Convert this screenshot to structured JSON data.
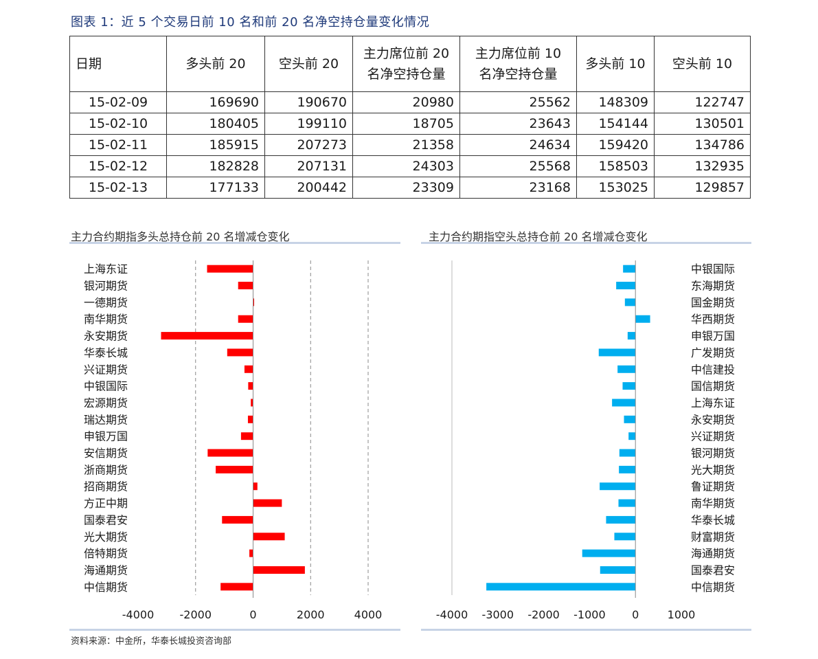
{
  "figure_title": "图表 1：近 5 个交易日前 10 名和前 20 名净空持仓量变化情况",
  "table": {
    "headers": [
      "日期",
      "多头前 20",
      "空头前 20",
      "主力席位前 20\n名净空持仓量",
      "主力席位前 10\n名净空持仓量",
      "多头前 10",
      "空头前 10"
    ],
    "rows": [
      [
        "15-02-09",
        "169690",
        "190670",
        "20980",
        "25562",
        "148309",
        "122747"
      ],
      [
        "15-02-10",
        "180405",
        "199110",
        "18705",
        "23643",
        "154144",
        "130501"
      ],
      [
        "15-02-11",
        "185915",
        "207273",
        "21358",
        "24634",
        "159420",
        "134786"
      ],
      [
        "15-02-12",
        "182828",
        "207131",
        "24303",
        "25568",
        "158503",
        "132935"
      ],
      [
        "15-02-13",
        "177133",
        "200442",
        "23309",
        "23168",
        "153025",
        "129857"
      ]
    ]
  },
  "chart_data": [
    {
      "type": "bar",
      "orientation": "horizontal",
      "title": "主力合约期指多头总持仓前 20 名增减仓变化",
      "color": "#ff0000",
      "categories": [
        "上海东证",
        "银河期货",
        "一德期货",
        "南华期货",
        "永安期货",
        "华泰长城",
        "兴证期货",
        "中银国际",
        "宏源期货",
        "瑞达期货",
        "申银万国",
        "安信期货",
        "浙商期货",
        "招商期货",
        "方正中期",
        "国泰君安",
        "光大期货",
        "倍特期货",
        "海通期货",
        "中信期货"
      ],
      "values": [
        -1600,
        -520,
        30,
        -520,
        -3200,
        -900,
        -300,
        -170,
        -80,
        -180,
        -420,
        -1580,
        -1300,
        150,
        1000,
        -1080,
        1100,
        -130,
        1800,
        -1130
      ],
      "xlim": [
        -4000,
        4000
      ],
      "xticks": [
        -4000,
        -2000,
        0,
        2000,
        4000
      ],
      "gridlines": [
        -2000,
        2000,
        4000
      ],
      "grid": true
    },
    {
      "type": "bar",
      "orientation": "horizontal",
      "title": "主力合约期指空头总持仓前 20 名增减仓变化",
      "color": "#00aeef",
      "categories": [
        "中银国际",
        "东海期货",
        "国金期货",
        "华西期货",
        "申银万国",
        "广发期货",
        "中信建投",
        "国信期货",
        "上海东证",
        "永安期货",
        "兴证期货",
        "银河期货",
        "光大期货",
        "鲁证期货",
        "南华期货",
        "华泰长城",
        "财富期货",
        "海通期货",
        "国泰君安",
        "中信期货"
      ],
      "values": [
        -270,
        -420,
        -230,
        320,
        -170,
        -800,
        -390,
        -280,
        -510,
        -250,
        -150,
        -350,
        -360,
        -780,
        -370,
        -640,
        -460,
        -1160,
        -770,
        -3250
      ],
      "xlim": [
        -4000,
        1000
      ],
      "xticks": [
        -4000,
        -3000,
        -2000,
        -1000,
        0,
        1000
      ],
      "gridlines": [],
      "grid": false
    }
  ],
  "source": "资料来源：中金所，华泰长城投资咨询部"
}
